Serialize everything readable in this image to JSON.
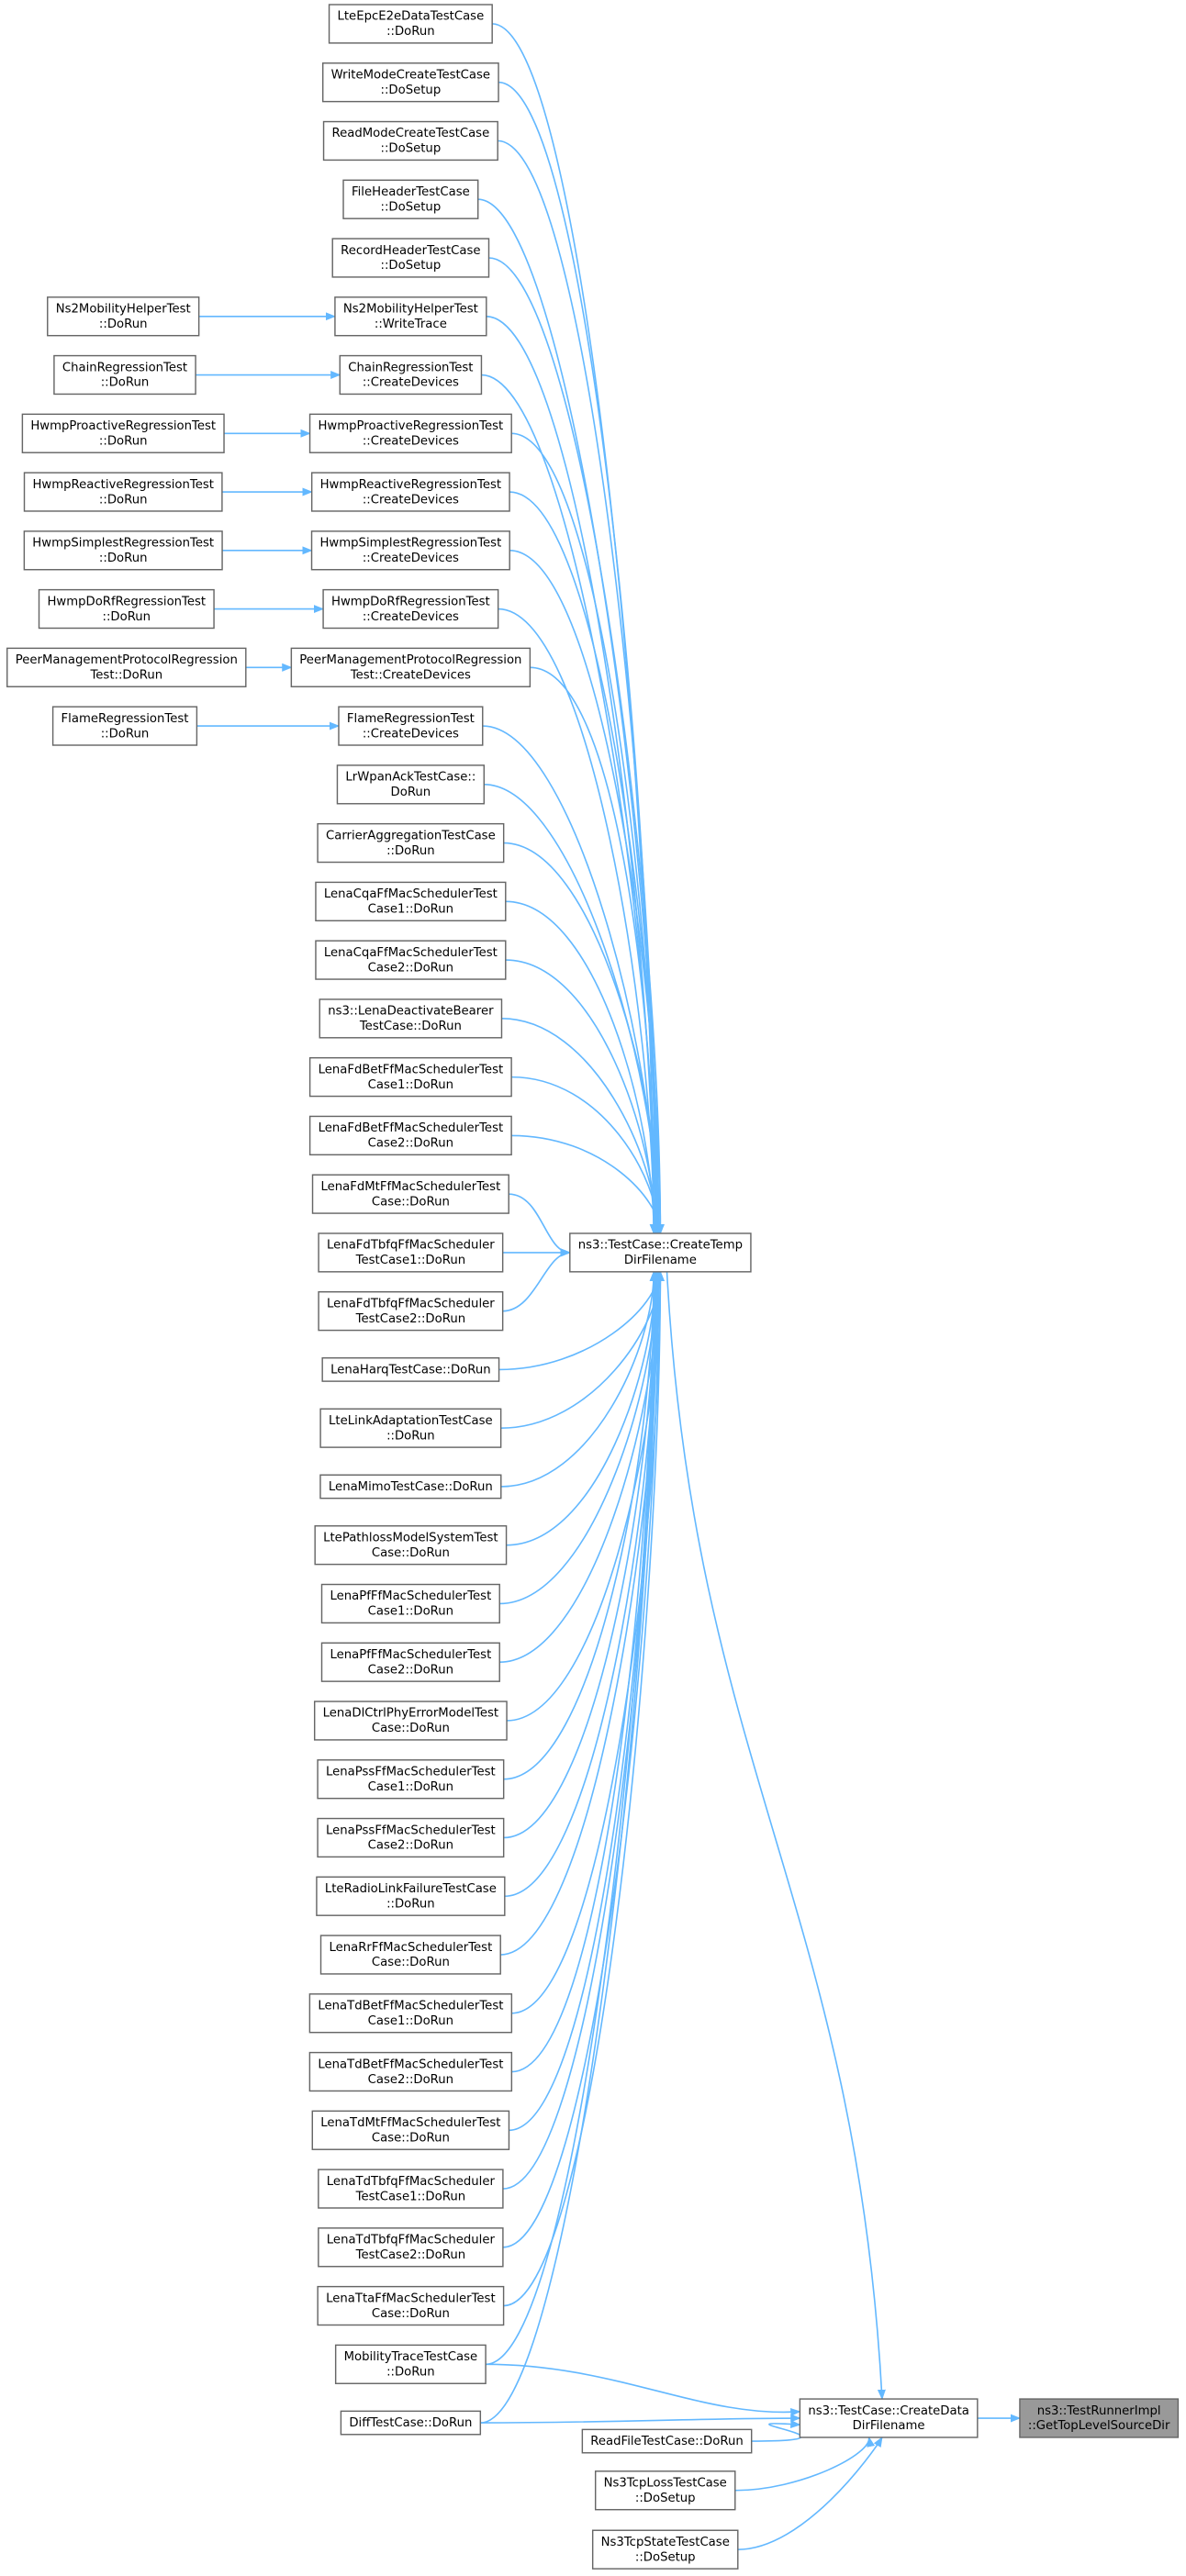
{
  "nodes": [
    {
      "lines": [
        "LteEpcE2eDataTestCase",
        "::DoRun"
      ]
    },
    {
      "lines": [
        "WriteModeCreateTestCase",
        "::DoSetup"
      ]
    },
    {
      "lines": [
        "ReadModeCreateTestCase",
        "::DoSetup"
      ]
    },
    {
      "lines": [
        "FileHeaderTestCase",
        "::DoSetup"
      ]
    },
    {
      "lines": [
        "RecordHeaderTestCase",
        "::DoSetup"
      ]
    },
    {
      "lines": [
        "Ns2MobilityHelperTest",
        "::WriteTrace"
      ]
    },
    {
      "lines": [
        "ChainRegressionTest",
        "::CreateDevices"
      ]
    },
    {
      "lines": [
        "HwmpProactiveRegressionTest",
        "::CreateDevices"
      ]
    },
    {
      "lines": [
        "HwmpReactiveRegressionTest",
        "::CreateDevices"
      ]
    },
    {
      "lines": [
        "HwmpSimplestRegressionTest",
        "::CreateDevices"
      ]
    },
    {
      "lines": [
        "HwmpDoRfRegressionTest",
        "::CreateDevices"
      ]
    },
    {
      "lines": [
        "PeerManagementProtocolRegression",
        "Test::CreateDevices"
      ]
    },
    {
      "lines": [
        "FlameRegressionTest",
        "::CreateDevices"
      ]
    },
    {
      "lines": [
        "LrWpanAckTestCase::",
        "DoRun"
      ]
    },
    {
      "lines": [
        "CarrierAggregationTestCase",
        "::DoRun"
      ]
    },
    {
      "lines": [
        "LenaCqaFfMacSchedulerTest",
        "Case1::DoRun"
      ]
    },
    {
      "lines": [
        "LenaCqaFfMacSchedulerTest",
        "Case2::DoRun"
      ]
    },
    {
      "lines": [
        "ns3::LenaDeactivateBearer",
        "TestCase::DoRun"
      ]
    },
    {
      "lines": [
        "LenaFdBetFfMacSchedulerTest",
        "Case1::DoRun"
      ]
    },
    {
      "lines": [
        "LenaFdBetFfMacSchedulerTest",
        "Case2::DoRun"
      ]
    },
    {
      "lines": [
        "LenaFdMtFfMacSchedulerTest",
        "Case::DoRun"
      ]
    },
    {
      "lines": [
        "LenaFdTbfqFfMacScheduler",
        "TestCase1::DoRun"
      ]
    },
    {
      "lines": [
        "LenaFdTbfqFfMacScheduler",
        "TestCase2::DoRun"
      ]
    },
    {
      "lines": [
        "LenaHarqTestCase::DoRun"
      ]
    },
    {
      "lines": [
        "LteLinkAdaptationTestCase",
        "::DoRun"
      ]
    },
    {
      "lines": [
        "LenaMimoTestCase::DoRun"
      ]
    },
    {
      "lines": [
        "LtePathlossModelSystemTest",
        "Case::DoRun"
      ]
    },
    {
      "lines": [
        "LenaPfFfMacSchedulerTest",
        "Case1::DoRun"
      ]
    },
    {
      "lines": [
        "LenaPfFfMacSchedulerTest",
        "Case2::DoRun"
      ]
    },
    {
      "lines": [
        "LenaDlCtrlPhyErrorModelTest",
        "Case::DoRun"
      ]
    },
    {
      "lines": [
        "LenaPssFfMacSchedulerTest",
        "Case1::DoRun"
      ]
    },
    {
      "lines": [
        "LenaPssFfMacSchedulerTest",
        "Case2::DoRun"
      ]
    },
    {
      "lines": [
        "LteRadioLinkFailureTestCase",
        "::DoRun"
      ]
    },
    {
      "lines": [
        "LenaRrFfMacSchedulerTest",
        "Case::DoRun"
      ]
    },
    {
      "lines": [
        "LenaTdBetFfMacSchedulerTest",
        "Case1::DoRun"
      ]
    },
    {
      "lines": [
        "LenaTdBetFfMacSchedulerTest",
        "Case2::DoRun"
      ]
    },
    {
      "lines": [
        "LenaTdMtFfMacSchedulerTest",
        "Case::DoRun"
      ]
    },
    {
      "lines": [
        "LenaTdTbfqFfMacScheduler",
        "TestCase1::DoRun"
      ]
    },
    {
      "lines": [
        "LenaTdTbfqFfMacScheduler",
        "TestCase2::DoRun"
      ]
    },
    {
      "lines": [
        "LenaTtaFfMacSchedulerTest",
        "Case::DoRun"
      ]
    },
    {
      "lines": [
        "MobilityTraceTestCase",
        "::DoRun"
      ]
    },
    {
      "lines": [
        "DiffTestCase::DoRun"
      ]
    },
    {
      "lines": [
        "Ns2MobilityHelperTest",
        "::DoRun"
      ]
    },
    {
      "lines": [
        "ChainRegressionTest",
        "::DoRun"
      ]
    },
    {
      "lines": [
        "HwmpProactiveRegressionTest",
        "::DoRun"
      ]
    },
    {
      "lines": [
        "HwmpReactiveRegressionTest",
        "::DoRun"
      ]
    },
    {
      "lines": [
        "HwmpSimplestRegressionTest",
        "::DoRun"
      ]
    },
    {
      "lines": [
        "HwmpDoRfRegressionTest",
        "::DoRun"
      ]
    },
    {
      "lines": [
        "PeerManagementProtocolRegression",
        "Test::DoRun"
      ]
    },
    {
      "lines": [
        "FlameRegressionTest",
        "::DoRun"
      ]
    },
    {
      "lines": [
        "ns3::TestCase::CreateTemp",
        "DirFilename"
      ]
    },
    {
      "lines": [
        "ns3::TestCase::CreateData",
        "DirFilename"
      ]
    },
    {
      "lines": [
        "ns3::TestRunnerImpl",
        "::GetTopLevelSourceDir"
      ]
    },
    {
      "lines": [
        "ReadFileTestCase::DoRun"
      ]
    },
    {
      "lines": [
        "Ns3TcpLossTestCase",
        "::DoSetup"
      ]
    },
    {
      "lines": [
        "Ns3TcpStateTestCase",
        "::DoSetup"
      ]
    }
  ]
}
